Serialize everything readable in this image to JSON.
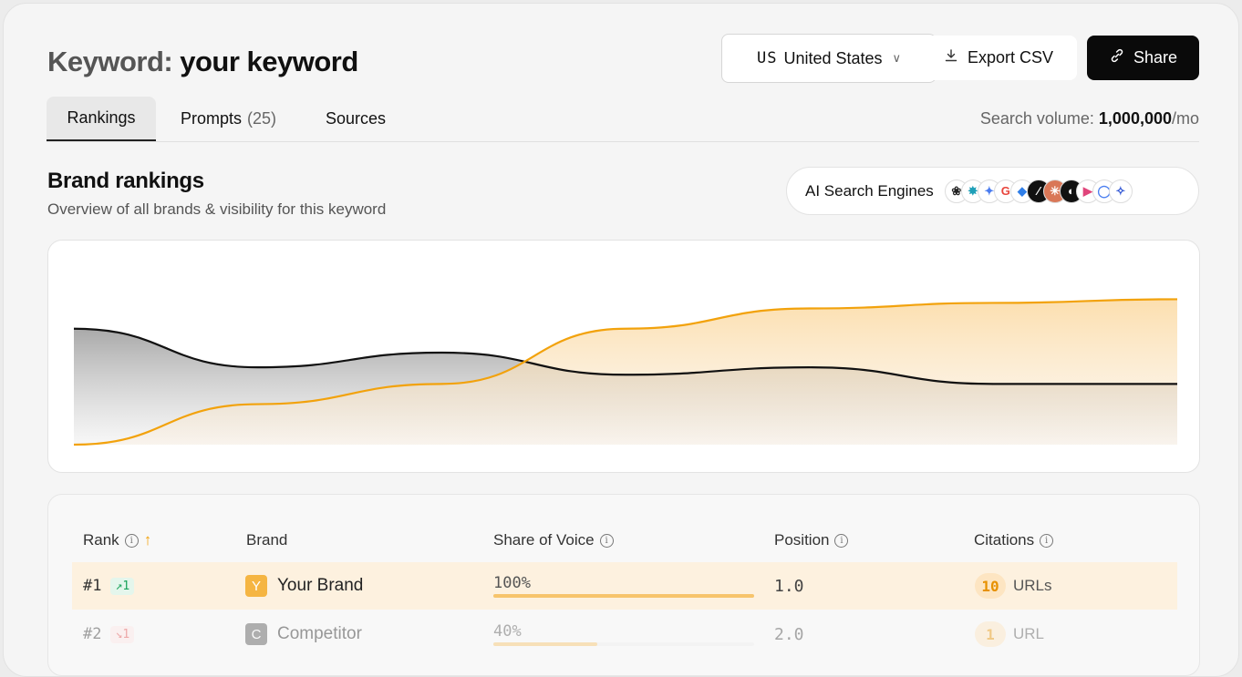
{
  "header": {
    "title_prefix": "Keyword:",
    "keyword": "your keyword",
    "country": {
      "code": "US",
      "name": "United States"
    },
    "export_label": "Export CSV",
    "share_label": "Share"
  },
  "tabs": [
    {
      "label": "Rankings",
      "active": true
    },
    {
      "label": "Prompts",
      "count": "(25)"
    },
    {
      "label": "Sources"
    }
  ],
  "volume": {
    "label": "Search volume:",
    "value": "1,000,000",
    "unit": "/mo"
  },
  "section": {
    "title": "Brand rankings",
    "subtitle": "Overview of all brands & visibility for this keyword"
  },
  "engines": {
    "label": "AI Search Engines",
    "icons": [
      "chatgpt-icon",
      "perplexity-icon",
      "gemini-icon",
      "google-icon",
      "copilot-icon",
      "grok-icon",
      "claude-icon",
      "deepseek-icon",
      "ai-overview-icon",
      "meta-ai-icon",
      "mistral-icon"
    ]
  },
  "chart_data": {
    "type": "area",
    "x": [
      0,
      1,
      2,
      3,
      4,
      5,
      6
    ],
    "ylim": [
      0,
      100
    ],
    "series": [
      {
        "values": [
          63,
          42,
          50,
          38,
          42,
          33,
          33
        ],
        "color": "#111111"
      },
      {
        "values": [
          0,
          22,
          33,
          63,
          74,
          77,
          79
        ],
        "color": "#f2a20c"
      }
    ]
  },
  "table": {
    "columns": {
      "rank": "Rank",
      "brand": "Brand",
      "sov": "Share of Voice",
      "position": "Position",
      "citations": "Citations"
    },
    "rows": [
      {
        "rank": "#1",
        "trend": "1",
        "trend_dir": "up",
        "letter": "Y",
        "brand": "Your Brand",
        "badge_color": "#f5b542",
        "sov": "100%",
        "sov_value": 100,
        "position": "1.0",
        "citations": "10",
        "citations_unit": "URLs"
      },
      {
        "rank": "#2",
        "trend": "1",
        "trend_dir": "down",
        "letter": "C",
        "brand": "Competitor",
        "badge_color": "#555555",
        "sov": "40%",
        "sov_value": 40,
        "position": "2.0",
        "citations": "1",
        "citations_unit": "URL"
      }
    ]
  }
}
